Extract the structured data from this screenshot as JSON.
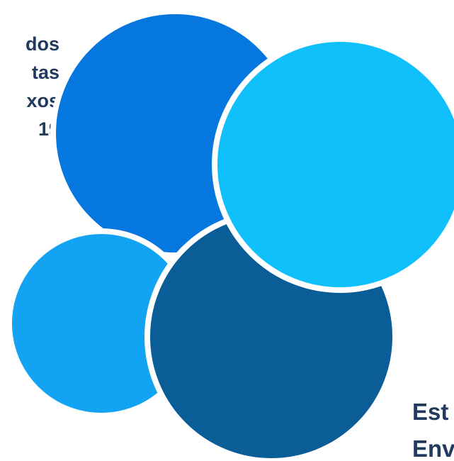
{
  "left_text": [
    "dos",
    "tas",
    "xos",
    "19"
  ],
  "bottom_text": [
    "Est",
    "Env"
  ],
  "colors": {
    "circle_blue": "#0777e0",
    "circle_cyan": "#10c0fb",
    "circle_light_blue": "#12a4f2",
    "circle_navy": "#0b5d97",
    "text": "#223a5e",
    "outline": "#ffffff"
  }
}
